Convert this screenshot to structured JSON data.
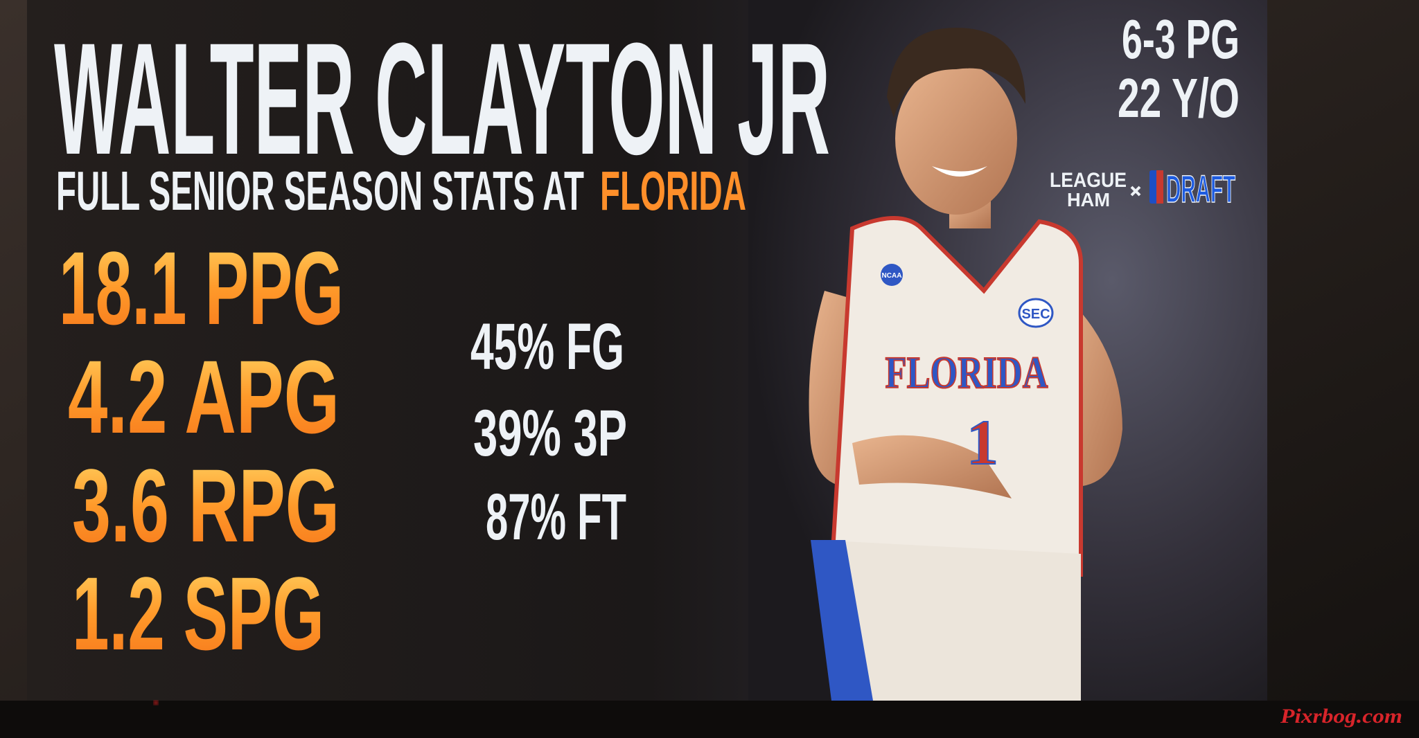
{
  "header": {
    "title": "WALTER CLAYTON JR",
    "subtitle": "FULL SENIOR SEASON STATS AT",
    "subtitle_highlight": "FLORIDA"
  },
  "player_info": [
    "6-3 PG",
    "22 Y/O"
  ],
  "logos": {
    "league": "LEAGUE",
    "ham": "HAM",
    "draft": "DRAFT"
  },
  "stats": {
    "per_game": [
      "18.1 PPG",
      "4.2 APG",
      "3.6 RPG",
      "1.2 SPG"
    ],
    "shooting": [
      "45% FG",
      "39% 3P",
      "87% FT"
    ]
  },
  "jersey": {
    "school": "FLORIDA",
    "number": "1",
    "conference": "SEC",
    "badge": "NCAA"
  },
  "watermark": "Pixrbog.com"
}
